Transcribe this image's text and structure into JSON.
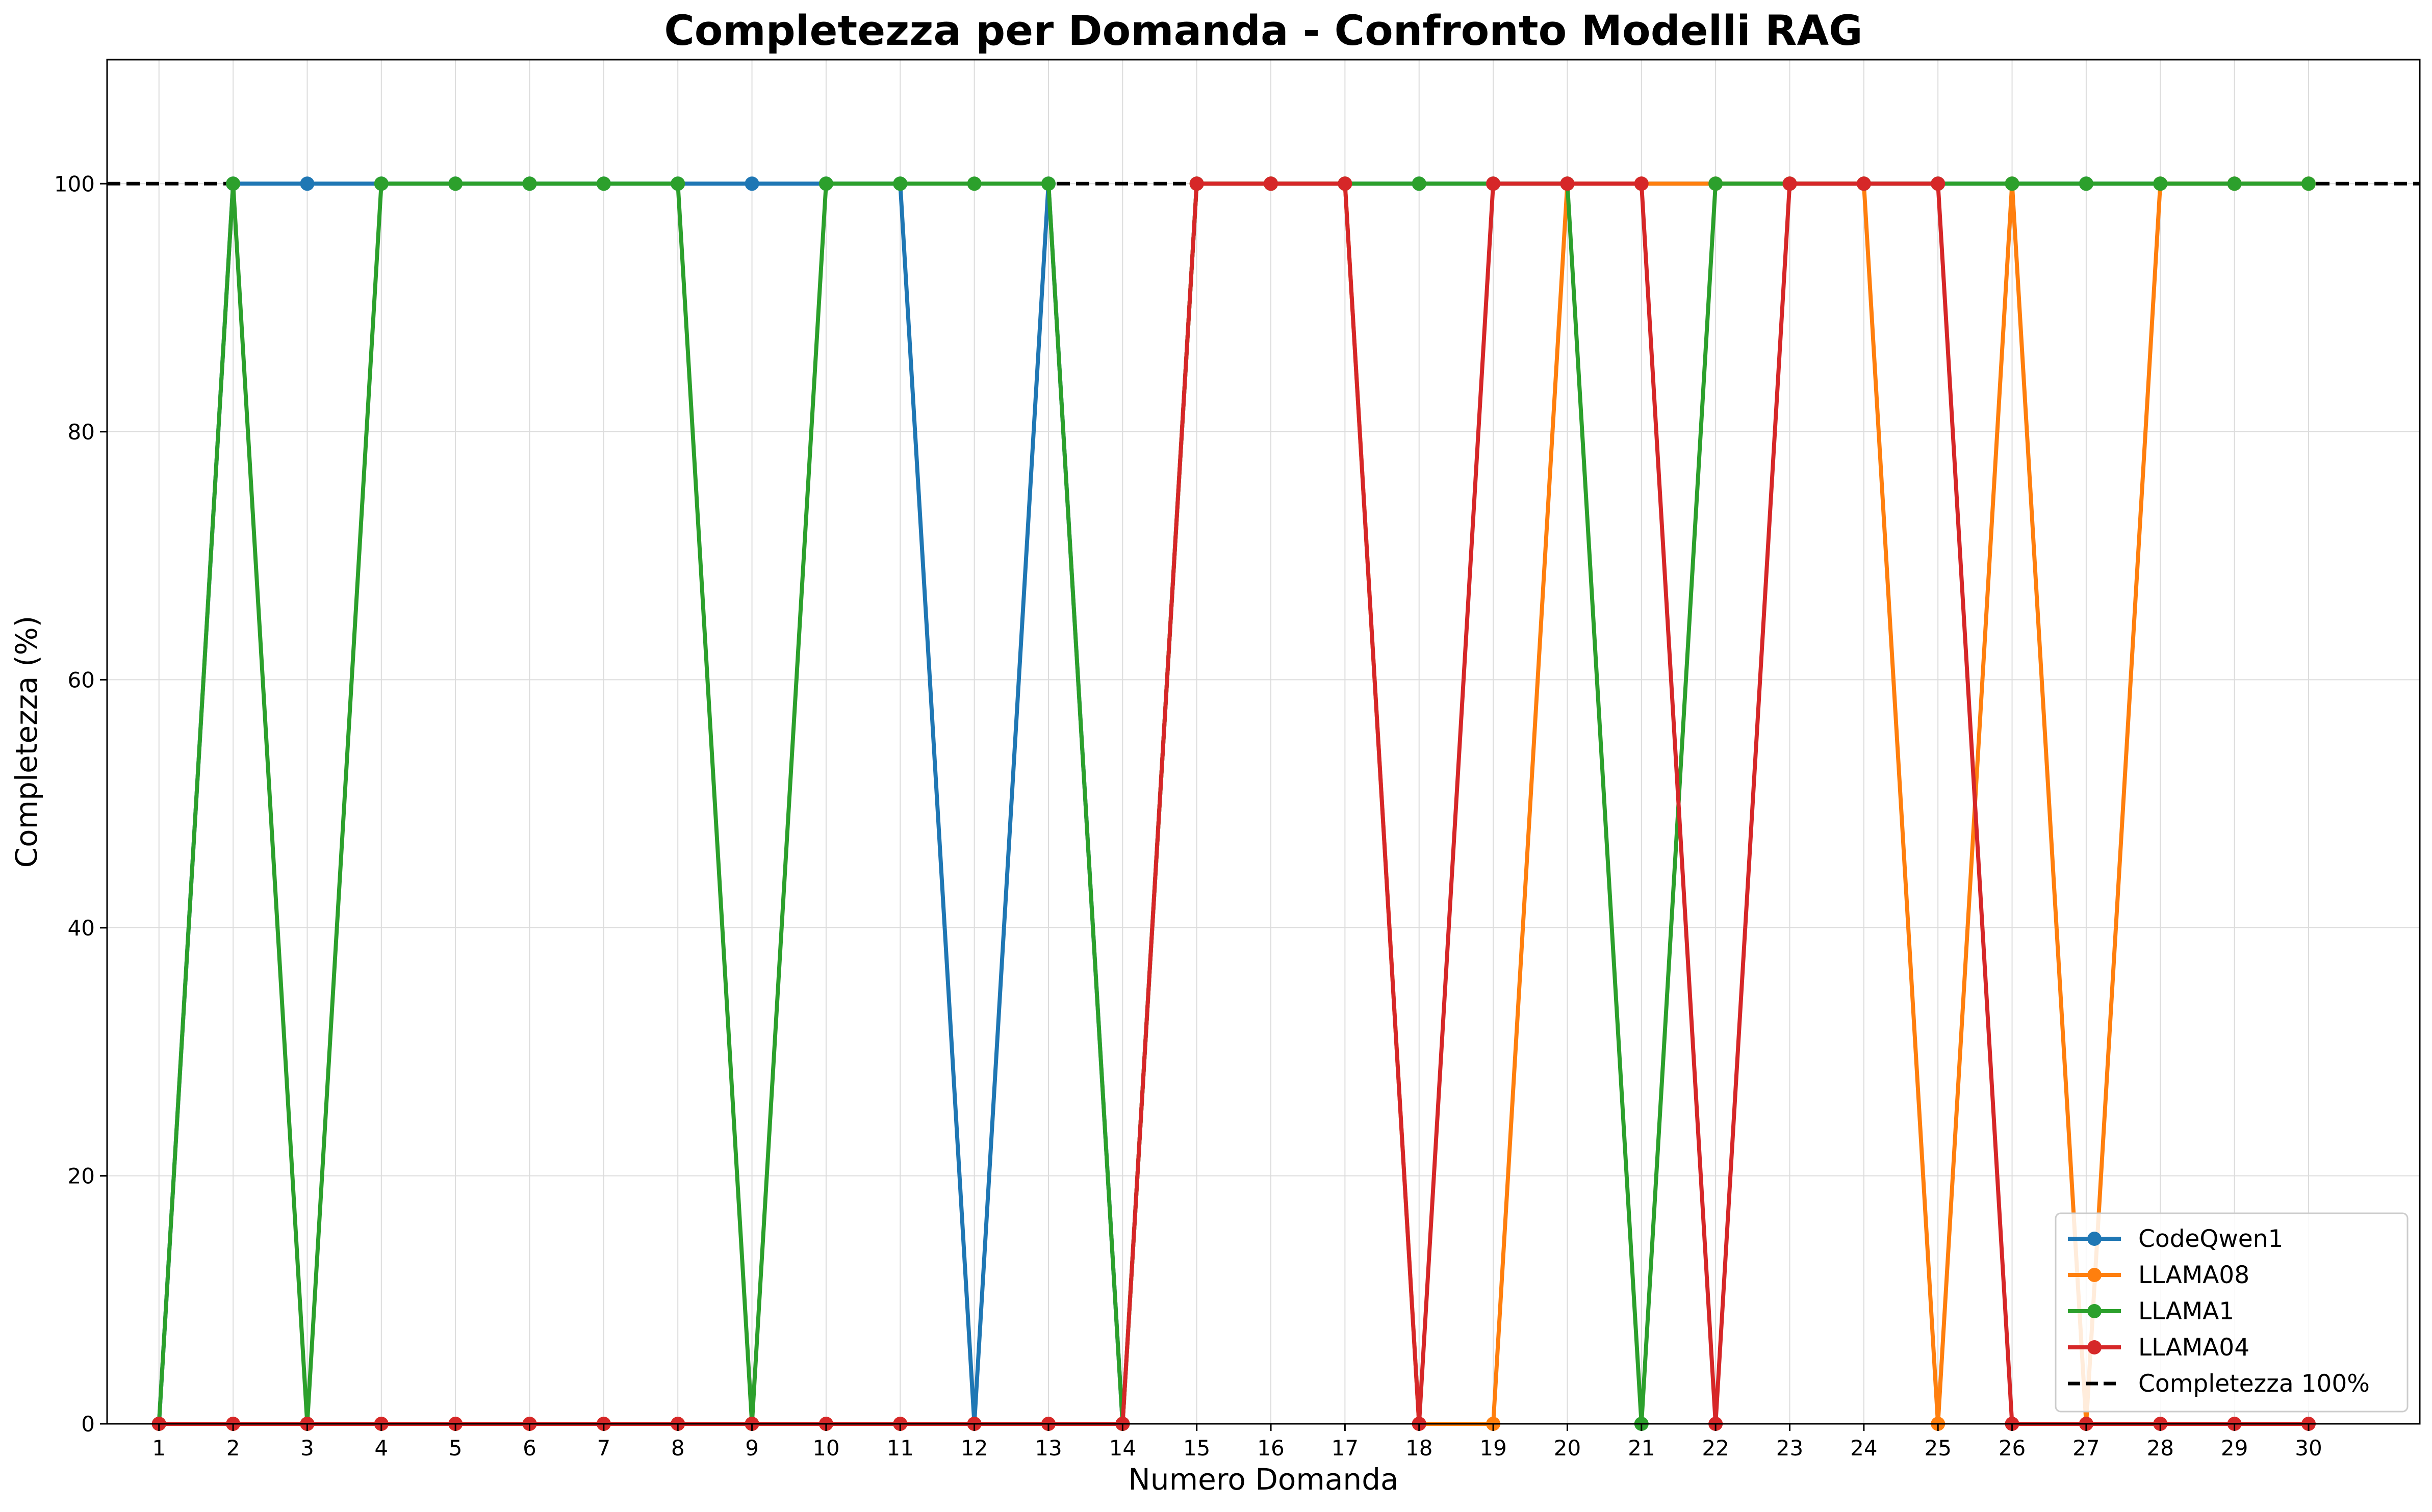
{
  "chart_data": {
    "type": "line",
    "title": "Completezza per Domanda - Confronto Modelli RAG",
    "xlabel": "Numero Domanda",
    "ylabel": "Completezza (%)",
    "x": [
      1,
      2,
      3,
      4,
      5,
      6,
      7,
      8,
      9,
      10,
      11,
      12,
      13,
      14,
      15,
      16,
      17,
      18,
      19,
      20,
      21,
      22,
      23,
      24,
      25,
      26,
      27,
      28,
      29,
      30
    ],
    "xlim": [
      0.3,
      31.5
    ],
    "ylim": [
      0,
      110
    ],
    "yticks": [
      0,
      20,
      40,
      60,
      80,
      100
    ],
    "grid": true,
    "legend_position": "lower-right",
    "series": [
      {
        "name": "CodeQwen1",
        "color": "#1f77b4",
        "values": [
          0,
          100,
          100,
          100,
          100,
          100,
          100,
          100,
          100,
          100,
          100,
          0,
          100,
          0,
          100,
          100,
          100,
          100,
          100,
          100,
          100,
          100,
          100,
          100,
          100,
          100,
          100,
          100,
          100,
          100
        ]
      },
      {
        "name": "LLAMA08",
        "color": "#ff7f0e",
        "values": [
          0,
          0,
          0,
          0,
          0,
          0,
          0,
          0,
          0,
          0,
          0,
          0,
          0,
          0,
          100,
          100,
          100,
          0,
          0,
          100,
          100,
          100,
          100,
          100,
          0,
          100,
          0,
          100,
          100,
          100
        ]
      },
      {
        "name": "LLAMA1",
        "color": "#2ca02c",
        "values": [
          0,
          100,
          0,
          100,
          100,
          100,
          100,
          100,
          0,
          100,
          100,
          100,
          100,
          0,
          100,
          100,
          100,
          100,
          100,
          100,
          0,
          100,
          100,
          100,
          100,
          100,
          100,
          100,
          100,
          100
        ]
      },
      {
        "name": "LLAMA04",
        "color": "#d62728",
        "values": [
          0,
          0,
          0,
          0,
          0,
          0,
          0,
          0,
          0,
          0,
          0,
          0,
          0,
          0,
          100,
          100,
          100,
          0,
          100,
          100,
          100,
          0,
          100,
          100,
          100,
          0,
          0,
          0,
          0,
          0
        ]
      }
    ],
    "reference_line": {
      "name": "Completezza 100%",
      "value": 100,
      "color": "#000000"
    }
  }
}
